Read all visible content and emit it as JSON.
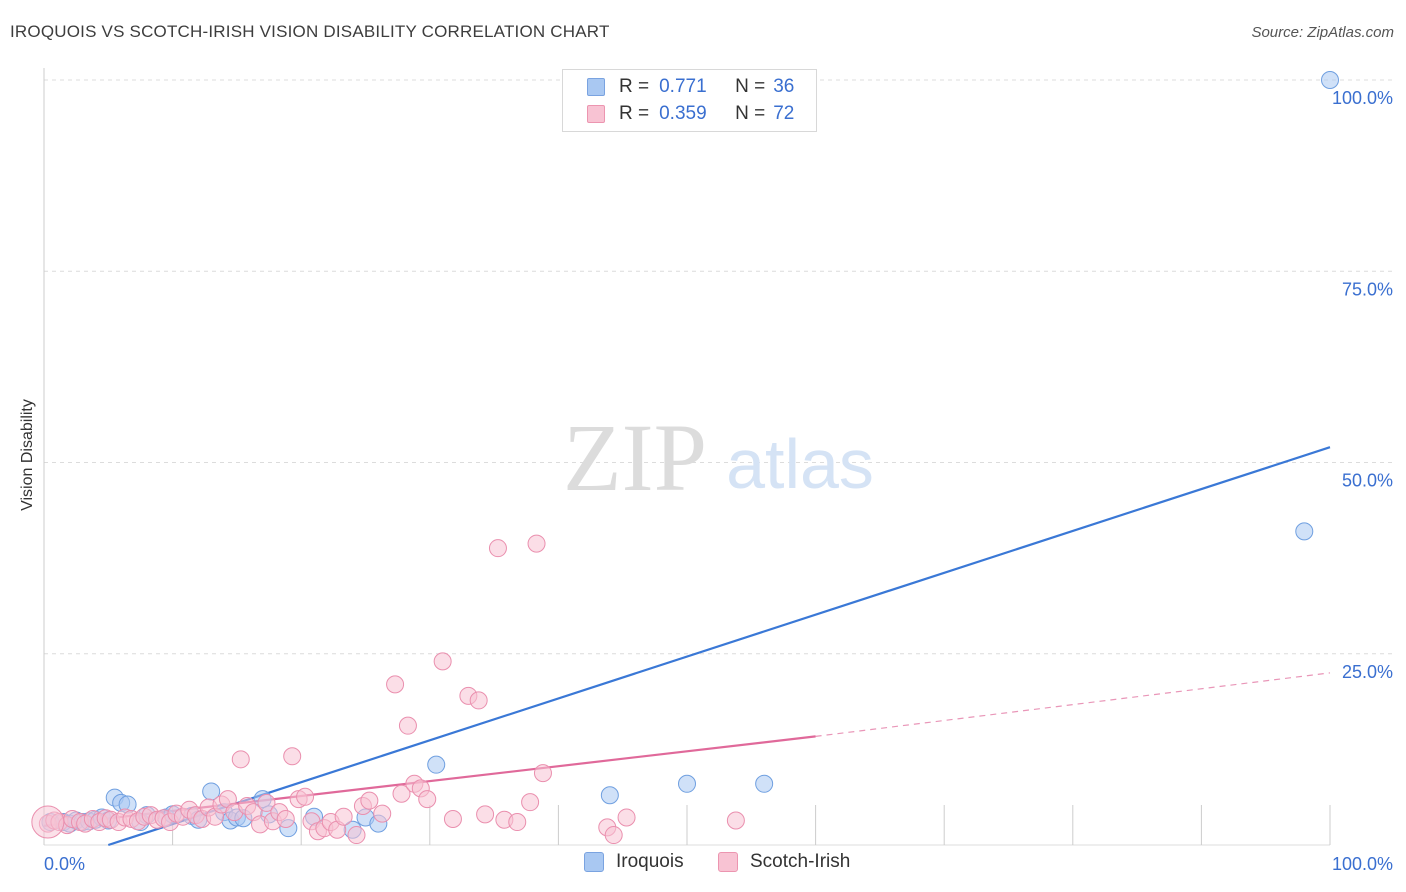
{
  "header": {
    "title": "IROQUOIS VS SCOTCH-IRISH VISION DISABILITY CORRELATION CHART",
    "source": "Source: ZipAtlas.com"
  },
  "watermark": {
    "zip": "ZIP",
    "atlas": "atlas"
  },
  "legend": {
    "rows": [
      {
        "r_label": "R = ",
        "r_value": "0.771",
        "n_label": "N = ",
        "n_value": "36",
        "color": "#a9c8f2",
        "border": "#7aa3e0"
      },
      {
        "r_label": "R = ",
        "r_value": "0.359",
        "n_label": "N = ",
        "n_value": "72",
        "color": "#f8c3d3",
        "border": "#ec95b0"
      }
    ]
  },
  "bottom_legend": {
    "items": [
      {
        "label": "Iroquois",
        "color": "#a9c8f2",
        "border": "#7aa3e0"
      },
      {
        "label": "Scotch-Irish",
        "color": "#f8c3d3",
        "border": "#ec95b0"
      }
    ]
  },
  "chart_data": {
    "type": "scatter",
    "title": "IROQUOIS VS SCOTCH-IRISH VISION DISABILITY CORRELATION CHART",
    "ylabel": "Vision Disability",
    "xlabel": "",
    "xlim": [
      0,
      100
    ],
    "ylim": [
      0,
      100
    ],
    "x_tick_labels": [
      "0.0%",
      "100.0%"
    ],
    "y_tick_labels": [
      "25.0%",
      "50.0%",
      "75.0%",
      "100.0%"
    ],
    "y_ticks": [
      25,
      50,
      75,
      100
    ],
    "grid": true,
    "legend_placement": "top-center",
    "colors": {
      "iroquois": "#3a78d6",
      "scotch_irish": "#e0699a",
      "axis_text": "#3a6fd0"
    },
    "series": [
      {
        "name": "Iroquois",
        "color": "#a9c8f2",
        "stroke": "#6f9fe0",
        "trend": {
          "x": [
            5,
            100
          ],
          "y": [
            0,
            52
          ]
        },
        "points": [
          [
            0.5,
            3.0
          ],
          [
            1.5,
            3.0
          ],
          [
            2.0,
            2.8
          ],
          [
            2.5,
            3.2
          ],
          [
            3.0,
            3.0
          ],
          [
            3.5,
            3.1
          ],
          [
            4.0,
            3.3
          ],
          [
            4.5,
            3.6
          ],
          [
            5.5,
            6.2
          ],
          [
            5.0,
            3.2
          ],
          [
            6.0,
            5.5
          ],
          [
            6.5,
            5.3
          ],
          [
            7.5,
            3.0
          ],
          [
            8.0,
            3.9
          ],
          [
            9.5,
            3.6
          ],
          [
            10.0,
            4.0
          ],
          [
            11.5,
            3.8
          ],
          [
            12.0,
            3.3
          ],
          [
            13.0,
            7.0
          ],
          [
            14.0,
            4.3
          ],
          [
            14.5,
            3.2
          ],
          [
            15.0,
            3.6
          ],
          [
            15.5,
            3.5
          ],
          [
            17.0,
            6.0
          ],
          [
            17.5,
            4.0
          ],
          [
            19.0,
            2.2
          ],
          [
            21.0,
            3.7
          ],
          [
            24.0,
            2.0
          ],
          [
            25.0,
            3.6
          ],
          [
            26.0,
            2.8
          ],
          [
            30.5,
            10.5
          ],
          [
            44.0,
            6.5
          ],
          [
            50.0,
            8.0
          ],
          [
            56.0,
            8.0
          ],
          [
            98.0,
            41.0
          ],
          [
            100.0,
            100.0
          ]
        ]
      },
      {
        "name": "Scotch-Irish",
        "color": "#f8c3d3",
        "stroke": "#ea8fae",
        "trend": {
          "x": [
            0,
            60
          ],
          "y": [
            2.5,
            14.2
          ]
        },
        "trend_dashed": {
          "x": [
            60,
            100
          ],
          "y": [
            14.2,
            22.5
          ]
        },
        "points": [
          [
            0.3,
            2.8
          ],
          [
            0.8,
            3.2
          ],
          [
            1.2,
            3.0
          ],
          [
            1.8,
            2.6
          ],
          [
            2.2,
            3.4
          ],
          [
            2.8,
            3.0
          ],
          [
            3.2,
            2.8
          ],
          [
            3.8,
            3.4
          ],
          [
            4.3,
            3.0
          ],
          [
            4.8,
            3.5
          ],
          [
            5.2,
            3.3
          ],
          [
            5.8,
            3.0
          ],
          [
            6.3,
            3.6
          ],
          [
            6.8,
            3.4
          ],
          [
            7.3,
            3.1
          ],
          [
            7.8,
            3.7
          ],
          [
            8.3,
            3.9
          ],
          [
            8.8,
            3.3
          ],
          [
            9.3,
            3.5
          ],
          [
            9.8,
            3.0
          ],
          [
            10.3,
            4.1
          ],
          [
            10.8,
            3.7
          ],
          [
            11.3,
            4.6
          ],
          [
            11.8,
            3.9
          ],
          [
            12.3,
            3.4
          ],
          [
            12.8,
            4.9
          ],
          [
            13.3,
            3.7
          ],
          [
            13.8,
            5.3
          ],
          [
            14.3,
            6.0
          ],
          [
            14.8,
            4.3
          ],
          [
            15.3,
            11.2
          ],
          [
            15.8,
            5.1
          ],
          [
            16.3,
            4.3
          ],
          [
            16.8,
            2.7
          ],
          [
            17.3,
            5.5
          ],
          [
            17.8,
            3.1
          ],
          [
            18.3,
            4.3
          ],
          [
            18.8,
            3.4
          ],
          [
            19.3,
            11.6
          ],
          [
            19.8,
            6.0
          ],
          [
            20.3,
            6.3
          ],
          [
            20.8,
            3.1
          ],
          [
            21.3,
            1.8
          ],
          [
            21.8,
            2.2
          ],
          [
            22.3,
            3.0
          ],
          [
            22.8,
            2.0
          ],
          [
            23.3,
            3.7
          ],
          [
            24.3,
            1.3
          ],
          [
            24.8,
            5.1
          ],
          [
            25.3,
            5.8
          ],
          [
            26.3,
            4.1
          ],
          [
            27.3,
            21.0
          ],
          [
            27.8,
            6.7
          ],
          [
            28.3,
            15.6
          ],
          [
            28.8,
            8.0
          ],
          [
            29.3,
            7.4
          ],
          [
            29.8,
            6.0
          ],
          [
            31.0,
            24.0
          ],
          [
            31.8,
            3.4
          ],
          [
            33.0,
            19.5
          ],
          [
            33.8,
            18.9
          ],
          [
            34.3,
            4.0
          ],
          [
            35.3,
            38.8
          ],
          [
            35.8,
            3.3
          ],
          [
            36.8,
            3.0
          ],
          [
            37.8,
            5.6
          ],
          [
            38.3,
            39.4
          ],
          [
            38.8,
            9.4
          ],
          [
            43.8,
            2.3
          ],
          [
            44.3,
            1.3
          ],
          [
            45.3,
            3.6
          ],
          [
            53.8,
            3.2
          ]
        ]
      }
    ]
  }
}
